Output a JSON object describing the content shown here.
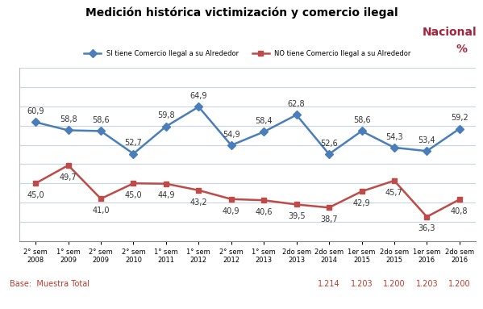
{
  "chart_data": {
    "type": "line",
    "title": "Medición histórica victimización y comercio ilegal",
    "annotations": [
      "Nacional",
      "%"
    ],
    "categories": [
      "2° sem\n2008",
      "1° sem\n2009",
      "2° sem\n2009",
      "2° sem\n2010",
      "1° sem\n2011",
      "1° sem\n2012",
      "2° sem\n2012",
      "1° sem\n2013",
      "2do sem\n2013",
      "2do sem\n2014",
      "1er sem\n2015",
      "2do sem\n2015",
      "1er sem\n2016",
      "2do sem\n2016"
    ],
    "series": [
      {
        "name": "SI tiene Comercio Ilegal a su Alrededor",
        "color": "#4a7ebb",
        "marker": "diamond",
        "line_style": "solid",
        "values": [
          60.9,
          58.8,
          58.6,
          52.7,
          59.8,
          64.9,
          54.9,
          58.4,
          62.8,
          52.6,
          58.6,
          54.3,
          53.4,
          59.2
        ]
      },
      {
        "name": "NO tiene Comercio Ilegal a su Alrededor",
        "color": "#be4b48",
        "marker": "square",
        "line_style": "solid",
        "values": [
          45.0,
          49.7,
          41.0,
          45.0,
          44.9,
          43.2,
          40.9,
          40.6,
          39.5,
          38.7,
          42.9,
          45.7,
          36.3,
          40.8
        ]
      }
    ],
    "value_labels": [
      [
        "60,9",
        "58,8",
        "58,6",
        "52,7",
        "59,8",
        "64,9",
        "54,9",
        "58,4",
        "62,8",
        "52,6",
        "58,6",
        "54,3",
        "53,4",
        "59,2"
      ],
      [
        "45,0",
        "49,7",
        "41,0",
        "45,0",
        "44,9",
        "43,2",
        "40,9",
        "40,6",
        "39,5",
        "38,7",
        "42,9",
        "45,7",
        "36,3",
        "40,8"
      ]
    ],
    "base_label": "Base:  Muestra Total",
    "base_values": [
      null,
      null,
      null,
      null,
      null,
      null,
      null,
      null,
      null,
      "1.214",
      "1.203",
      "1.200",
      "1.203",
      "1.200"
    ],
    "ylim": [
      30,
      75
    ],
    "yticks": [
      30,
      35,
      40,
      45,
      50,
      55,
      60,
      65,
      70,
      75
    ],
    "grid": true,
    "legend": "upper center",
    "data_labels": true,
    "tick_labels": "x"
  }
}
